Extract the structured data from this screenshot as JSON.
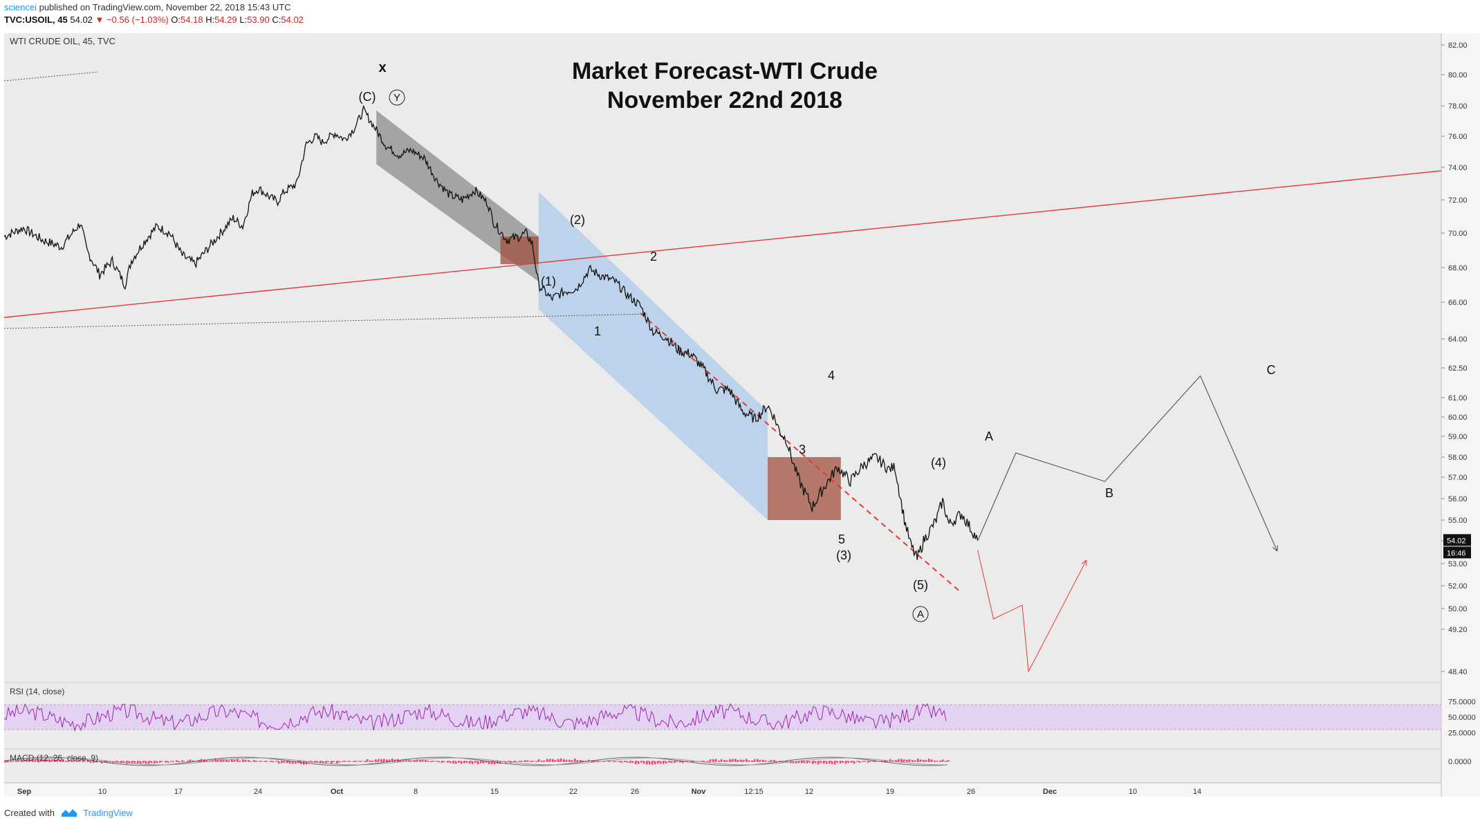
{
  "header": {
    "author": "sciencei",
    "published": "published on TradingView.com, November 22, 2018 15:43 UTC",
    "symbol": "TVC:USOIL, 45",
    "last": "54.02",
    "change": "▼ −0.56 (−1.03%)",
    "ohlc_o_label": "O:",
    "ohlc_o": "54.18",
    "ohlc_h_label": "H:",
    "ohlc_h": "54.29",
    "ohlc_l_label": "L:",
    "ohlc_l": "53.90",
    "ohlc_c_label": "C:",
    "ohlc_c": "54.02"
  },
  "footer": {
    "created_with": "Created with",
    "brand": "TradingView"
  },
  "colors": {
    "background": "#ebebeb",
    "price_line": "#111111",
    "red_line": "#e53935",
    "gray_channel": "#8c8c8c",
    "blue_channel": "#a9c9ec",
    "brown_box": "#a0523e",
    "rsi_band": "#e3d2f2",
    "rsi_line": "#9c27b0",
    "macd_hist": "#e91e63"
  },
  "chart_data": [
    {
      "type": "line",
      "panel": "price",
      "title": "Market Forecast-WTI Crude",
      "subtitle": "November 22nd 2018",
      "instrument_label": "WTI CRUDE OIL, 45, TVC",
      "x_tick_labels": [
        "Sep",
        "10",
        "17",
        "24",
        "Oct",
        "8",
        "15",
        "22",
        "26",
        "Nov",
        "12:15",
        "12",
        "19",
        "26",
        "Dec",
        "10",
        "14"
      ],
      "y_tick_labels": [
        "82.00",
        "80.00",
        "78.00",
        "76.00",
        "74.00",
        "72.00",
        "70.00",
        "68.00",
        "66.00",
        "64.00",
        "62.50",
        "61.00",
        "60.00",
        "59.00",
        "58.00",
        "57.00",
        "56.00",
        "55.00",
        "54.00",
        "53.00",
        "52.00",
        "50.00",
        "49.20",
        "48.40"
      ],
      "ylim": [
        48.0,
        82.5
      ],
      "last_price_label": "54.02",
      "countdown_label": "16:46",
      "series": [
        {
          "values": [
            [
              0,
              69.8
            ],
            [
              6,
              70.3
            ],
            [
              12,
              69.6
            ],
            [
              18,
              69.2
            ],
            [
              24,
              70.6
            ],
            [
              26,
              69.0
            ],
            [
              30,
              67.6
            ],
            [
              34,
              68.4
            ],
            [
              38,
              67.0
            ],
            [
              40,
              68.4
            ],
            [
              44,
              69.5
            ],
            [
              48,
              70.4
            ],
            [
              52,
              70.0
            ],
            [
              56,
              68.7
            ],
            [
              60,
              68.2
            ],
            [
              64,
              69.1
            ],
            [
              68,
              70.0
            ],
            [
              72,
              70.9
            ],
            [
              75,
              70.4
            ],
            [
              78,
              72.4
            ],
            [
              80,
              72.7
            ],
            [
              84,
              72.1
            ],
            [
              86,
              71.9
            ],
            [
              88,
              72.5
            ],
            [
              92,
              73.0
            ],
            [
              95,
              75.5
            ],
            [
              98,
              76.0
            ],
            [
              100,
              75.6
            ],
            [
              104,
              76.2
            ],
            [
              107,
              75.8
            ],
            [
              110,
              76.5
            ],
            [
              113,
              77.7
            ],
            [
              117,
              76.4
            ],
            [
              120,
              75.4
            ],
            [
              124,
              74.8
            ],
            [
              128,
              75.1
            ],
            [
              132,
              74.6
            ],
            [
              136,
              73.2
            ],
            [
              140,
              72.3
            ],
            [
              144,
              72.0
            ],
            [
              148,
              72.6
            ],
            [
              152,
              71.8
            ],
            [
              154,
              70.6
            ],
            [
              158,
              69.6
            ],
            [
              162,
              69.8
            ],
            [
              164,
              70.0
            ],
            [
              166,
              69.4
            ],
            [
              168,
              67.0
            ],
            [
              172,
              66.2
            ],
            [
              176,
              66.6
            ],
            [
              180,
              66.8
            ],
            [
              184,
              67.9
            ],
            [
              188,
              67.5
            ],
            [
              192,
              67.2
            ],
            [
              196,
              66.4
            ],
            [
              200,
              65.8
            ],
            [
              204,
              64.4
            ],
            [
              208,
              64.1
            ],
            [
              212,
              63.4
            ],
            [
              216,
              63.2
            ],
            [
              220,
              62.4
            ],
            [
              224,
              61.4
            ],
            [
              228,
              61.4
            ],
            [
              232,
              60.3
            ],
            [
              236,
              59.9
            ],
            [
              238,
              60.2
            ],
            [
              240,
              60.6
            ],
            [
              242,
              60.0
            ],
            [
              244,
              59.2
            ],
            [
              246,
              58.8
            ],
            [
              248,
              57.7
            ],
            [
              250,
              56.8
            ],
            [
              254,
              55.6
            ],
            [
              258,
              56.6
            ],
            [
              262,
              57.5
            ],
            [
              266,
              56.8
            ],
            [
              270,
              57.6
            ],
            [
              274,
              58.0
            ],
            [
              278,
              57.4
            ],
            [
              280,
              57.5
            ],
            [
              283,
              55.0
            ],
            [
              285,
              53.8
            ],
            [
              287,
              53.2
            ],
            [
              289,
              54.0
            ],
            [
              293,
              55.0
            ],
            [
              295,
              55.9
            ],
            [
              297,
              54.8
            ],
            [
              301,
              55.3
            ],
            [
              305,
              54.3
            ],
            [
              306,
              54.02
            ]
          ]
        }
      ],
      "projections": [
        {
          "name": "black-path",
          "points": [
            [
              306,
              54.0
            ],
            [
              318,
              58.2
            ],
            [
              346,
              56.8
            ],
            [
              376,
              62.1
            ],
            [
              400,
              53.6
            ]
          ]
        },
        {
          "name": "red-path",
          "points": [
            [
              306,
              53.6
            ],
            [
              311,
              49.6
            ],
            [
              320,
              50.3
            ],
            [
              322,
              48.4
            ],
            [
              340,
              53.1
            ]
          ]
        }
      ],
      "wave_labels": [
        "x",
        "(C)",
        "Y",
        "(2)",
        "(1)",
        "2",
        "1",
        "4",
        "3",
        "5",
        "(3)",
        "(4)",
        "(5)",
        "A",
        "A",
        "B",
        "C"
      ]
    },
    {
      "type": "line",
      "panel": "rsi",
      "label": "RSI (14, close)",
      "y_tick_labels": [
        "75.0000",
        "50.0000",
        "25.0000"
      ],
      "ylim": [
        0,
        100
      ],
      "band": [
        30,
        70
      ]
    },
    {
      "type": "bar",
      "panel": "macd",
      "label": "MACD (12, 26, close, 9)",
      "y_tick_labels": [
        "0.0000"
      ]
    }
  ]
}
